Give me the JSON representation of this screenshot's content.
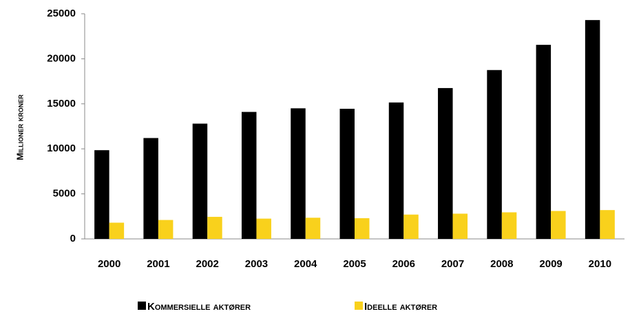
{
  "chart_data": {
    "type": "bar",
    "y_label": "Millioner kroner",
    "categories": [
      "2000",
      "2001",
      "2002",
      "2003",
      "2004",
      "2005",
      "2006",
      "2007",
      "2008",
      "2009",
      "2010"
    ],
    "series": [
      {
        "name": "Kommersielle aktører",
        "color": "#000000",
        "values": [
          9850,
          11200,
          12800,
          14100,
          14500,
          14450,
          15150,
          16750,
          18750,
          21550,
          24300
        ]
      },
      {
        "name": "Ideelle aktører",
        "color": "#f9d11c",
        "values": [
          1800,
          2100,
          2450,
          2250,
          2350,
          2300,
          2700,
          2800,
          2950,
          3100,
          3200
        ]
      }
    ],
    "ylim": [
      0,
      25000
    ],
    "yticks": [
      0,
      5000,
      10000,
      15000,
      20000,
      25000
    ],
    "grid": false,
    "legend": "bottom"
  }
}
